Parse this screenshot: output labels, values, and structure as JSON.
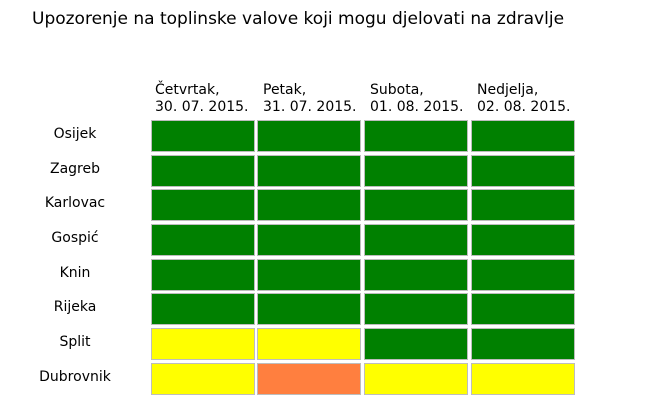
{
  "chart_data": {
    "type": "heatmap",
    "title": "Upozorenje na toplinske valove koji mogu djelovati na zdravlje",
    "columns": [
      {
        "day": "Četvrtak,",
        "date": "30. 07. 2015."
      },
      {
        "day": "Petak,",
        "date": "31. 07. 2015."
      },
      {
        "day": "Subota,",
        "date": "01. 08. 2015."
      },
      {
        "day": "Nedjelja,",
        "date": "02. 08. 2015."
      }
    ],
    "rows": [
      "Osijek",
      "Zagreb",
      "Karlovac",
      "Gospić",
      "Knin",
      "Rijeka",
      "Split",
      "Dubrovnik"
    ],
    "values": [
      [
        "green",
        "green",
        "green",
        "green"
      ],
      [
        "green",
        "green",
        "green",
        "green"
      ],
      [
        "green",
        "green",
        "green",
        "green"
      ],
      [
        "green",
        "green",
        "green",
        "green"
      ],
      [
        "green",
        "green",
        "green",
        "green"
      ],
      [
        "green",
        "green",
        "green",
        "green"
      ],
      [
        "yellow",
        "yellow",
        "green",
        "green"
      ],
      [
        "yellow",
        "orange",
        "yellow",
        "yellow"
      ]
    ],
    "colors": {
      "green": "#008000",
      "yellow": "#ffff00",
      "orange": "#ff7f3f"
    }
  }
}
